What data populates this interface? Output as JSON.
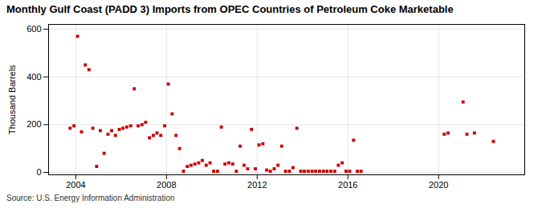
{
  "chart_data": {
    "type": "scatter",
    "title": "Monthly Gulf Coast (PADD 3) Imports from OPEC Countries of Petroleum Coke Marketable",
    "ylabel": "Thousand Barrels",
    "source": "Source: U.S. Energy Information Administration",
    "color": "#cc0000",
    "marker": "square",
    "grid": true,
    "xlim": [
      2002.8,
      2023.8
    ],
    "ylim": [
      -10,
      620
    ],
    "xticks": [
      2004,
      2008,
      2012,
      2016,
      2020
    ],
    "yticks": [
      0,
      200,
      400,
      600
    ],
    "x": [
      2003.75,
      2003.92,
      2004.08,
      2004.25,
      2004.42,
      2004.58,
      2004.75,
      2004.92,
      2005.08,
      2005.25,
      2005.42,
      2005.58,
      2005.75,
      2005.92,
      2006.08,
      2006.25,
      2006.42,
      2006.58,
      2006.75,
      2006.92,
      2007.08,
      2007.25,
      2007.42,
      2007.58,
      2007.75,
      2007.92,
      2008.08,
      2008.25,
      2008.42,
      2008.58,
      2008.75,
      2008.92,
      2009.08,
      2009.25,
      2009.42,
      2009.58,
      2009.75,
      2009.92,
      2010.08,
      2010.25,
      2010.42,
      2010.58,
      2010.75,
      2010.92,
      2011.08,
      2011.25,
      2011.42,
      2011.58,
      2011.75,
      2011.92,
      2012.08,
      2012.25,
      2012.42,
      2012.58,
      2012.75,
      2012.92,
      2013.08,
      2013.25,
      2013.42,
      2013.58,
      2013.75,
      2013.92,
      2014.08,
      2014.25,
      2014.42,
      2014.58,
      2014.75,
      2014.92,
      2015.08,
      2015.25,
      2015.42,
      2015.58,
      2015.75,
      2015.92,
      2016.08,
      2016.25,
      2016.42,
      2016.58,
      2020.25,
      2020.42,
      2021.08,
      2021.25,
      2021.58,
      2022.42
    ],
    "values": [
      185,
      195,
      570,
      170,
      450,
      430,
      185,
      25,
      175,
      80,
      160,
      175,
      155,
      180,
      185,
      190,
      195,
      350,
      195,
      200,
      210,
      145,
      155,
      165,
      155,
      195,
      370,
      245,
      155,
      100,
      5,
      25,
      30,
      35,
      40,
      50,
      30,
      40,
      5,
      5,
      190,
      35,
      40,
      35,
      5,
      110,
      30,
      15,
      180,
      15,
      115,
      120,
      10,
      5,
      15,
      30,
      110,
      5,
      5,
      20,
      185,
      5,
      5,
      5,
      5,
      5,
      5,
      5,
      5,
      5,
      5,
      30,
      40,
      5,
      5,
      135,
      5,
      5,
      160,
      165,
      295,
      160,
      165,
      130
    ]
  }
}
